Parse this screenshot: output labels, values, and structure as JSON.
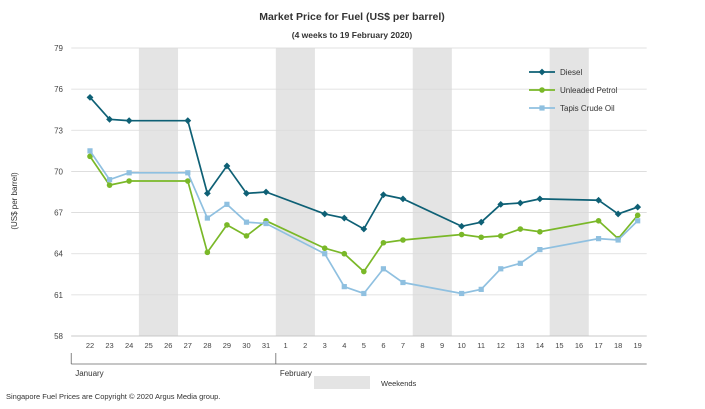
{
  "chart_data": {
    "type": "line",
    "title": "Market Price for Fuel  (US$  per barrel)",
    "subtitle": "(4 weeks to 19 February 2020)",
    "ylabel": "(US$ per barrel)",
    "xlabel": "",
    "ylim": [
      58,
      79
    ],
    "yticks": [
      58,
      61,
      64,
      67,
      70,
      73,
      76,
      79
    ],
    "grid": "horizontal",
    "legend_position": "top-right",
    "categories": [
      "22",
      "23",
      "24",
      "25",
      "26",
      "27",
      "28",
      "29",
      "30",
      "31",
      "1",
      "2",
      "3",
      "4",
      "5",
      "6",
      "7",
      "8",
      "9",
      "10",
      "11",
      "12",
      "13",
      "14",
      "15",
      "16",
      "17",
      "18",
      "19"
    ],
    "months": [
      {
        "label": "January",
        "start": "22"
      },
      {
        "label": "February",
        "start": "1"
      }
    ],
    "weekend_label": "Weekends",
    "weekends": [
      [
        "25",
        "26"
      ],
      [
        "1",
        "2"
      ],
      [
        "8",
        "9"
      ],
      [
        "15",
        "16"
      ]
    ],
    "series": [
      {
        "name": "Diesel",
        "color": "#0e6075",
        "marker": "diamond",
        "points": [
          [
            "22",
            75.4
          ],
          [
            "23",
            73.8
          ],
          [
            "24",
            73.7
          ],
          [
            "27",
            73.7
          ],
          [
            "28",
            68.4
          ],
          [
            "29",
            70.4
          ],
          [
            "30",
            68.4
          ],
          [
            "31",
            68.5
          ],
          [
            "3",
            66.9
          ],
          [
            "4",
            66.6
          ],
          [
            "5",
            65.8
          ],
          [
            "6",
            68.3
          ],
          [
            "7",
            68.0
          ],
          [
            "10",
            66.0
          ],
          [
            "11",
            66.3
          ],
          [
            "12",
            67.6
          ],
          [
            "13",
            67.7
          ],
          [
            "14",
            68.0
          ],
          [
            "17",
            67.9
          ],
          [
            "18",
            66.9
          ],
          [
            "19",
            67.4
          ]
        ]
      },
      {
        "name": "Unleaded Petrol",
        "color": "#7ab828",
        "marker": "circle",
        "points": [
          [
            "22",
            71.1
          ],
          [
            "23",
            69.0
          ],
          [
            "24",
            69.3
          ],
          [
            "27",
            69.3
          ],
          [
            "28",
            64.1
          ],
          [
            "29",
            66.1
          ],
          [
            "30",
            65.3
          ],
          [
            "31",
            66.4
          ],
          [
            "3",
            64.4
          ],
          [
            "4",
            64.0
          ],
          [
            "5",
            62.7
          ],
          [
            "6",
            64.8
          ],
          [
            "7",
            65.0
          ],
          [
            "10",
            65.4
          ],
          [
            "11",
            65.2
          ],
          [
            "12",
            65.3
          ],
          [
            "13",
            65.8
          ],
          [
            "14",
            65.6
          ],
          [
            "17",
            66.4
          ],
          [
            "18",
            65.1
          ],
          [
            "19",
            66.8
          ]
        ]
      },
      {
        "name": "Tapis Crude Oil",
        "color": "#8fc0e0",
        "marker": "square",
        "points": [
          [
            "22",
            71.5
          ],
          [
            "23",
            69.4
          ],
          [
            "24",
            69.9
          ],
          [
            "27",
            69.9
          ],
          [
            "28",
            66.6
          ],
          [
            "29",
            67.6
          ],
          [
            "30",
            66.3
          ],
          [
            "31",
            66.2
          ],
          [
            "3",
            64.0
          ],
          [
            "4",
            61.6
          ],
          [
            "5",
            61.1
          ],
          [
            "6",
            62.9
          ],
          [
            "7",
            61.9
          ],
          [
            "10",
            61.1
          ],
          [
            "11",
            61.4
          ],
          [
            "12",
            62.9
          ],
          [
            "13",
            63.3
          ],
          [
            "14",
            64.3
          ],
          [
            "17",
            65.1
          ],
          [
            "18",
            65.0
          ],
          [
            "19",
            66.4
          ]
        ]
      }
    ]
  },
  "footer": {
    "copyright": "Singapore  Fuel Prices are Copyright © 2020  Argus Media group."
  }
}
